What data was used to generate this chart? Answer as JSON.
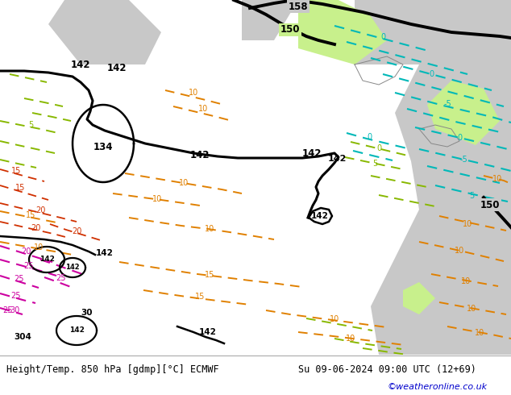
{
  "title_left": "Height/Temp. 850 hPa [gdmp][°C] ECMWF",
  "title_right": "Su 09-06-2024 09:00 UTC (12+69)",
  "watermark": "©weatheronline.co.uk",
  "bg_land_green": "#c8f08c",
  "bg_sea_gray": "#c8c8c8",
  "bg_white": "#ffffff",
  "contour_black": "#000000",
  "contour_orange": "#e08000",
  "contour_green_yel": "#88b800",
  "contour_cyan": "#00b8b8",
  "contour_red": "#d03000",
  "contour_magenta": "#cc00a0",
  "coast_color": "#888888",
  "caption_bg": "#ffffff",
  "watermark_color": "#0000cc",
  "figw": 6.34,
  "figh": 4.9,
  "dpi": 100
}
